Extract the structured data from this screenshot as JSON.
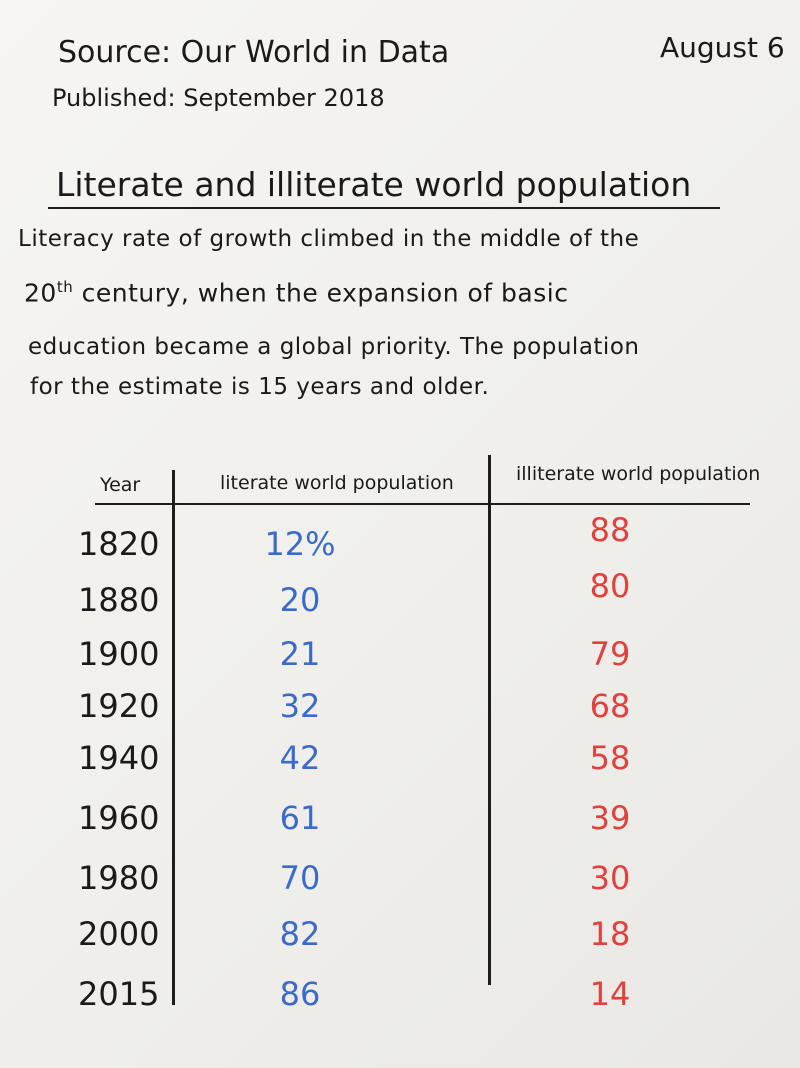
{
  "header": {
    "source": "Source: Our World in Data",
    "published": "Published: September 2018",
    "date": "August 6",
    "title": "Literate and illiterate world population"
  },
  "description": {
    "line1": "Literacy rate of growth climbed in the middle of the",
    "ordinal": "20",
    "ordinal_suffix": "th",
    "line2_rest": "century, when the expansion of basic",
    "line3": "education became a global priority. The population",
    "line4": "for the estimate is 15 years and older."
  },
  "table": {
    "header": [
      "Year",
      "literate world population",
      "illiterate world population"
    ],
    "rows": [
      [
        "1820",
        "12%",
        "88"
      ],
      [
        "1880",
        "20",
        "80"
      ],
      [
        "1900",
        "21",
        "79"
      ],
      [
        "1920",
        "32",
        "68"
      ],
      [
        "1940",
        "42",
        "58"
      ],
      [
        "1960",
        "61",
        "39"
      ],
      [
        "1980",
        "70",
        "30"
      ],
      [
        "2000",
        "82",
        "18"
      ],
      [
        "2015",
        "86",
        "14"
      ]
    ]
  }
}
